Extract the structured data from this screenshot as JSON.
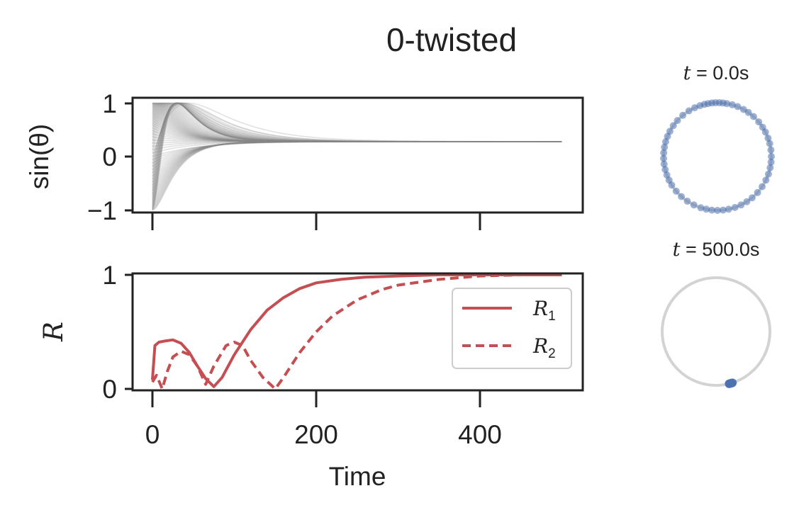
{
  "figure": {
    "title": "0-twisted"
  },
  "chart_data": [
    {
      "type": "line",
      "panel": "phases",
      "ylabel": "sin(θ)",
      "yticks": [
        "1",
        "0",
        "−1"
      ],
      "ylim": [
        -1.05,
        1.05
      ],
      "xlim": [
        -25,
        525
      ],
      "n_oscillators": 100,
      "t_end": 500,
      "final_value": 0.28,
      "line_color": "#888888",
      "grid": false
    },
    {
      "type": "line",
      "panel": "order-parameters",
      "xlabel": "Time",
      "ylabel": "R",
      "xticks": [
        "0",
        "200",
        "400"
      ],
      "yticks": [
        "1",
        "0"
      ],
      "ylim": [
        0,
        1
      ],
      "xlim": [
        -25,
        525
      ],
      "legend": "right",
      "color": "#c44e52",
      "series": [
        {
          "name": "R1",
          "label_main": "R",
          "label_sub": "1",
          "style": "solid",
          "x": [
            0,
            3,
            8,
            15,
            25,
            35,
            45,
            55,
            65,
            75,
            85,
            100,
            120,
            140,
            160,
            180,
            200,
            230,
            260,
            300,
            350,
            400,
            450,
            500
          ],
          "y": [
            0.08,
            0.38,
            0.41,
            0.42,
            0.43,
            0.4,
            0.32,
            0.2,
            0.09,
            0.02,
            0.1,
            0.3,
            0.52,
            0.69,
            0.8,
            0.88,
            0.93,
            0.96,
            0.98,
            0.99,
            1.0,
            1.0,
            1.0,
            1.0
          ]
        },
        {
          "name": "R2",
          "label_main": "R",
          "label_sub": "2",
          "style": "dashed",
          "x": [
            0,
            5,
            12,
            18,
            25,
            35,
            45,
            55,
            65,
            75,
            90,
            100,
            110,
            120,
            135,
            150,
            160,
            180,
            200,
            220,
            250,
            280,
            300,
            350,
            400,
            450,
            500
          ],
          "y": [
            0.06,
            0.12,
            0.0,
            0.15,
            0.28,
            0.33,
            0.3,
            0.2,
            0.04,
            0.2,
            0.38,
            0.41,
            0.38,
            0.25,
            0.1,
            0.0,
            0.1,
            0.32,
            0.5,
            0.64,
            0.78,
            0.87,
            0.91,
            0.96,
            0.99,
            1.0,
            1.0
          ]
        }
      ]
    },
    {
      "type": "scatter",
      "panel": "circle-t0",
      "title_prefix": "t",
      "title_suffix": " = 0.0s",
      "description": "phases spread around unit circle",
      "point_color": "#4c72b0",
      "ring_color": "#d3d3d3",
      "angles_deg": [
        0,
        7,
        14,
        20,
        27,
        33,
        40,
        48,
        55,
        61,
        68,
        74,
        80,
        84,
        88,
        92,
        96,
        100,
        104,
        109,
        115,
        122,
        130,
        138,
        145,
        152,
        158,
        164,
        170,
        176,
        182,
        188,
        194,
        200,
        206,
        212,
        220,
        228,
        236,
        244,
        252,
        258,
        264,
        270,
        276,
        282,
        289,
        296,
        303,
        310,
        318,
        326,
        334,
        341,
        348,
        354
      ]
    },
    {
      "type": "scatter",
      "panel": "circle-t500",
      "title_prefix": "t",
      "title_suffix": " = 500.0s",
      "description": "all phases clustered",
      "point_color": "#4c72b0",
      "ring_color": "#d3d3d3",
      "cluster_angle_deg": 286
    }
  ]
}
